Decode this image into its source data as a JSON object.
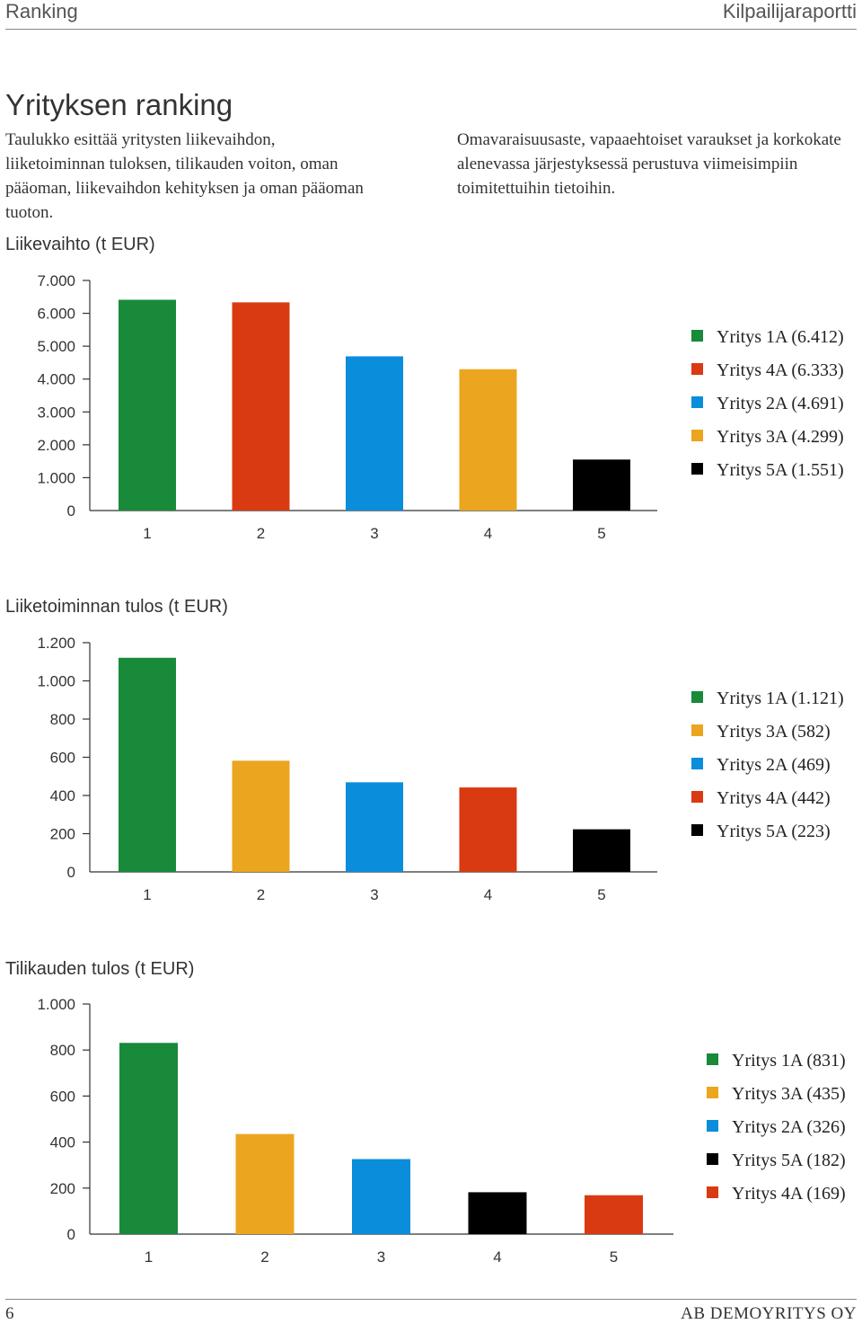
{
  "header": {
    "left": "Ranking",
    "right": "Kilpailijaraportti"
  },
  "page_title": "Yrityksen ranking",
  "intro": {
    "left": "Taulukko esittää yritysten liikevaihdon, liiketoiminnan tuloksen, tilikauden voiton, oman pääoman, liikevaihdon kehityksen ja oman pääoman tuoton.",
    "right": "Omavaraisuusaste, vapaaehtoiset varaukset ja korkokate alenevassa järjestyksessä perustuva viimeisimpiin toimitettuihin tietoihin."
  },
  "colors": {
    "Yritys 1A": "#188a3a",
    "Yritys 2A": "#0a8ddb",
    "Yritys 3A": "#eba51e",
    "Yritys 4A": "#d93a12",
    "Yritys 5A": "#000000"
  },
  "chart_data": [
    {
      "type": "bar",
      "title": "Liikevaihto (t EUR)",
      "categories": [
        "1",
        "2",
        "3",
        "4",
        "5"
      ],
      "values": [
        6412,
        6333,
        4691,
        4299,
        1551
      ],
      "companies": [
        "Yritys 1A",
        "Yritys 4A",
        "Yritys 2A",
        "Yritys 3A",
        "Yritys 5A"
      ],
      "ylim": [
        0,
        7000
      ],
      "yticks": [
        0,
        1000,
        2000,
        3000,
        4000,
        5000,
        6000,
        7000
      ],
      "ytick_labels": [
        "0",
        "1.000",
        "2.000",
        "3.000",
        "4.000",
        "5.000",
        "6.000",
        "7.000"
      ],
      "legend": [
        "Yritys 1A (6.412)",
        "Yritys 4A (6.333)",
        "Yritys 2A (4.691)",
        "Yritys 3A (4.299)",
        "Yritys 5A (1.551)"
      ],
      "legend_placement": "right",
      "grid": false
    },
    {
      "type": "bar",
      "title": "Liiketoiminnan tulos (t EUR)",
      "categories": [
        "1",
        "2",
        "3",
        "4",
        "5"
      ],
      "values": [
        1121,
        582,
        469,
        442,
        223
      ],
      "companies": [
        "Yritys 1A",
        "Yritys 3A",
        "Yritys 2A",
        "Yritys 4A",
        "Yritys 5A"
      ],
      "ylim": [
        0,
        1200
      ],
      "yticks": [
        0,
        200,
        400,
        600,
        800,
        1000,
        1200
      ],
      "ytick_labels": [
        "0",
        "200",
        "400",
        "600",
        "800",
        "1.000",
        "1.200"
      ],
      "legend": [
        "Yritys 1A (1.121)",
        "Yritys 3A (582)",
        "Yritys 2A (469)",
        "Yritys 4A (442)",
        "Yritys 5A (223)"
      ],
      "legend_placement": "right",
      "grid": false
    },
    {
      "type": "bar",
      "title": "Tilikauden tulos (t EUR)",
      "categories": [
        "1",
        "2",
        "3",
        "4",
        "5"
      ],
      "values": [
        831,
        435,
        326,
        182,
        169
      ],
      "companies": [
        "Yritys 1A",
        "Yritys 3A",
        "Yritys 2A",
        "Yritys 5A",
        "Yritys 4A"
      ],
      "ylim": [
        0,
        1000
      ],
      "yticks": [
        0,
        200,
        400,
        600,
        800,
        1000
      ],
      "ytick_labels": [
        "0",
        "200",
        "400",
        "600",
        "800",
        "1.000"
      ],
      "legend": [
        "Yritys 1A (831)",
        "Yritys 3A (435)",
        "Yritys 2A (326)",
        "Yritys 5A (182)",
        "Yritys 4A (169)"
      ],
      "legend_placement": "right",
      "grid": false
    }
  ],
  "footer": {
    "page_number": "6",
    "company": "AB DEMOYRITYS OY"
  }
}
